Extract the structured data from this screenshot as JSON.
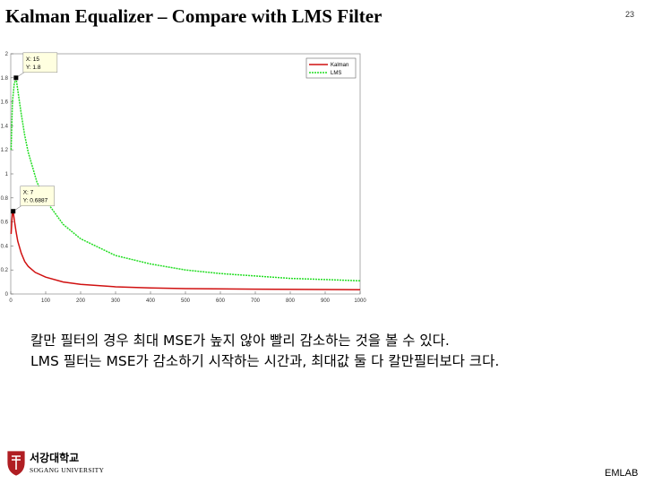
{
  "header": {
    "title": "Kalman Equalizer – Compare with LMS Filter",
    "page_number": "23"
  },
  "chart_data": {
    "type": "line",
    "xlim": [
      0,
      1000
    ],
    "ylim": [
      0,
      2
    ],
    "xticks": [
      "0",
      "100",
      "200",
      "300",
      "400",
      "500",
      "600",
      "700",
      "800",
      "900",
      "1000"
    ],
    "yticks": [
      "0",
      "0.2",
      "0.4",
      "0.6",
      "0.8",
      "1",
      "1.2",
      "1.4",
      "1.6",
      "1.8",
      "2"
    ],
    "legend": {
      "position": "top-right",
      "entries": [
        "Kalman",
        "LMS"
      ]
    },
    "series": [
      {
        "name": "Kalman",
        "color": "#d01010",
        "style": "solid",
        "x": [
          1,
          3,
          5,
          7,
          10,
          15,
          20,
          30,
          40,
          50,
          70,
          100,
          150,
          200,
          300,
          400,
          500,
          700,
          1000
        ],
        "y": [
          0.5,
          0.6,
          0.68,
          0.6887,
          0.62,
          0.52,
          0.44,
          0.34,
          0.27,
          0.23,
          0.18,
          0.14,
          0.1,
          0.08,
          0.06,
          0.05,
          0.045,
          0.04,
          0.035
        ]
      },
      {
        "name": "LMS",
        "color": "#22dd22",
        "style": "dashed",
        "x": [
          1,
          5,
          10,
          15,
          20,
          30,
          40,
          50,
          75,
          100,
          150,
          200,
          300,
          400,
          500,
          600,
          700,
          800,
          900,
          1000
        ],
        "y": [
          1.2,
          1.6,
          1.75,
          1.8,
          1.7,
          1.5,
          1.32,
          1.18,
          0.93,
          0.78,
          0.58,
          0.46,
          0.32,
          0.25,
          0.2,
          0.17,
          0.15,
          0.13,
          0.12,
          0.11
        ]
      }
    ],
    "annotations": [
      {
        "x": 15,
        "y": 1.8,
        "text_x": "X: 15",
        "text_y": "Y: 1.8"
      },
      {
        "x": 7,
        "y": 0.6887,
        "text_x": "X: 7",
        "text_y": "Y: 0.6887"
      }
    ]
  },
  "captions": {
    "line1": "칼만 필터의 경우 최대 MSE가 높지 않아 빨리 감소하는 것을 볼 수 있다.",
    "line2": "LMS 필터는 MSE가 감소하기 시작하는 시간과, 최대값 둘 다 칼만필터보다 크다."
  },
  "footer": {
    "logo_korean": "서강대학교",
    "logo_english": "SOGANG UNIVERSITY",
    "lab": "EMLAB"
  },
  "colors": {
    "logo_red": "#b01e23"
  }
}
